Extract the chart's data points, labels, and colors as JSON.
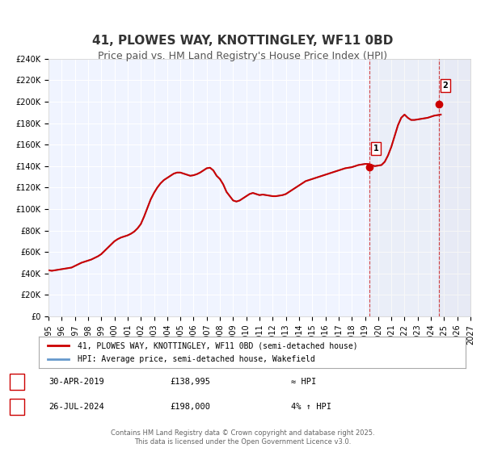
{
  "title": "41, PLOWES WAY, KNOTTINGLEY, WF11 0BD",
  "subtitle": "Price paid vs. HM Land Registry's House Price Index (HPI)",
  "title_fontsize": 11,
  "subtitle_fontsize": 9,
  "background_color": "#ffffff",
  "plot_bg_color": "#f0f4ff",
  "grid_color": "#ffffff",
  "legend_entry1": "41, PLOWES WAY, KNOTTINGLEY, WF11 0BD (semi-detached house)",
  "legend_entry2": "HPI: Average price, semi-detached house, Wakefield",
  "line_color": "#cc0000",
  "hpi_color": "#6699cc",
  "ylim": [
    0,
    240000
  ],
  "yticks": [
    0,
    20000,
    40000,
    60000,
    80000,
    100000,
    120000,
    140000,
    160000,
    180000,
    200000,
    220000,
    240000
  ],
  "xlabel_years": [
    1995,
    1996,
    1997,
    1998,
    1999,
    2000,
    2001,
    2002,
    2003,
    2004,
    2005,
    2006,
    2007,
    2008,
    2009,
    2010,
    2011,
    2012,
    2013,
    2014,
    2015,
    2016,
    2017,
    2018,
    2019,
    2020,
    2021,
    2022,
    2023,
    2024,
    2025,
    2026,
    2027
  ],
  "marker1_x": 2019.33,
  "marker1_y": 138995,
  "marker1_label": "1",
  "marker1_date": "30-APR-2019",
  "marker1_price": "£138,995",
  "marker1_hpi": "≈ HPI",
  "marker2_x": 2024.58,
  "marker2_y": 198000,
  "marker2_label": "2",
  "marker2_date": "26-JUL-2024",
  "marker2_price": "£198,000",
  "marker2_hpi": "4% ↑ HPI",
  "vline1_x": 2019.33,
  "vline2_x": 2024.58,
  "footer_text": "Contains HM Land Registry data © Crown copyright and database right 2025.\nThis data is licensed under the Open Government Licence v3.0.",
  "hpi_data_x": [
    1995.0,
    1995.25,
    1995.5,
    1995.75,
    1996.0,
    1996.25,
    1996.5,
    1996.75,
    1997.0,
    1997.25,
    1997.5,
    1997.75,
    1998.0,
    1998.25,
    1998.5,
    1998.75,
    1999.0,
    1999.25,
    1999.5,
    1999.75,
    2000.0,
    2000.25,
    2000.5,
    2000.75,
    2001.0,
    2001.25,
    2001.5,
    2001.75,
    2002.0,
    2002.25,
    2002.5,
    2002.75,
    2003.0,
    2003.25,
    2003.5,
    2003.75,
    2004.0,
    2004.25,
    2004.5,
    2004.75,
    2005.0,
    2005.25,
    2005.5,
    2005.75,
    2006.0,
    2006.25,
    2006.5,
    2006.75,
    2007.0,
    2007.25,
    2007.5,
    2007.75,
    2008.0,
    2008.25,
    2008.5,
    2008.75,
    2009.0,
    2009.25,
    2009.5,
    2009.75,
    2010.0,
    2010.25,
    2010.5,
    2010.75,
    2011.0,
    2011.25,
    2011.5,
    2011.75,
    2012.0,
    2012.25,
    2012.5,
    2012.75,
    2013.0,
    2013.25,
    2013.5,
    2013.75,
    2014.0,
    2014.25,
    2014.5,
    2014.75,
    2015.0,
    2015.25,
    2015.5,
    2015.75,
    2016.0,
    2016.25,
    2016.5,
    2016.75,
    2017.0,
    2017.25,
    2017.5,
    2017.75,
    2018.0,
    2018.25,
    2018.5,
    2018.75,
    2019.0,
    2019.25,
    2019.5,
    2019.75,
    2020.0,
    2020.25,
    2020.5,
    2020.75,
    2021.0,
    2021.25,
    2021.5,
    2021.75,
    2022.0,
    2022.25,
    2022.5,
    2022.75,
    2023.0,
    2023.25,
    2023.5,
    2023.75,
    2024.0,
    2024.25,
    2024.5,
    2024.75
  ],
  "hpi_data_y": [
    43000,
    42500,
    43000,
    43500,
    44000,
    44500,
    45000,
    45500,
    47000,
    48500,
    50000,
    51000,
    52000,
    53000,
    54500,
    56000,
    58000,
    61000,
    64000,
    67000,
    70000,
    72000,
    73500,
    74500,
    75500,
    77000,
    79000,
    82000,
    86000,
    93000,
    101000,
    109000,
    115000,
    120000,
    124000,
    127000,
    129000,
    131000,
    133000,
    134000,
    134000,
    133000,
    132000,
    131000,
    131500,
    132500,
    134000,
    136000,
    138000,
    138500,
    136000,
    131000,
    128000,
    123000,
    116000,
    112000,
    108000,
    107000,
    108000,
    110000,
    112000,
    114000,
    115000,
    114000,
    113000,
    113500,
    113000,
    112500,
    112000,
    112000,
    112500,
    113000,
    114000,
    116000,
    118000,
    120000,
    122000,
    124000,
    126000,
    127000,
    128000,
    129000,
    130000,
    131000,
    132000,
    133000,
    134000,
    135000,
    136000,
    137000,
    138000,
    138500,
    139000,
    140000,
    141000,
    141500,
    142000,
    142000,
    141000,
    140000,
    140500,
    141000,
    144000,
    150000,
    158000,
    168000,
    178000,
    185000,
    188000,
    185000,
    183000,
    183000,
    183500,
    184000,
    184500,
    185000,
    186000,
    187000,
    187500,
    188000
  ],
  "shaded_region1_start": 2019.33,
  "shaded_region2_start": 2024.58,
  "xmin": 1995,
  "xmax": 2027
}
